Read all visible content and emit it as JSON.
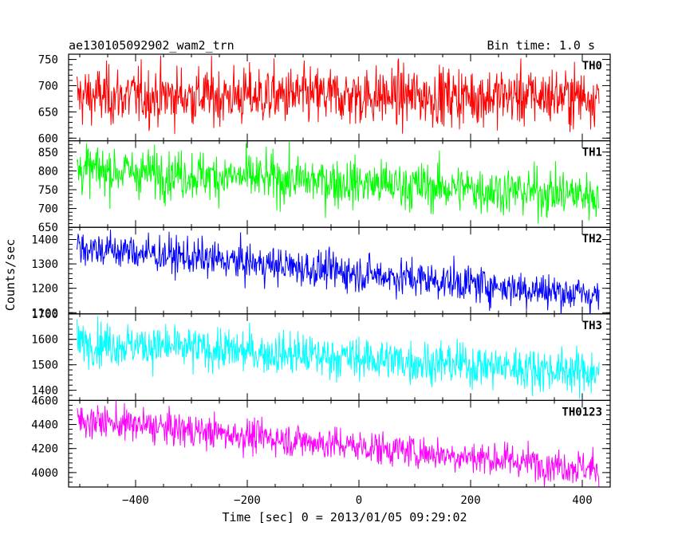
{
  "header": {
    "left_title": "ae130105092902_wam2_trn",
    "right_title": "Bin time: 1.0 s"
  },
  "chart_data": {
    "type": "line",
    "x_range": [
      -520,
      450
    ],
    "xlabel": "Time [sec] 0 = 2013/01/05 09:29:02",
    "ylabel": "Counts/sec",
    "x_ticks": [
      -400,
      -200,
      0,
      200,
      400
    ],
    "x_tick_labels": [
      "−400",
      "−200",
      "0",
      "200",
      "400"
    ],
    "bin_time_s": 1.0,
    "x_data_range": [
      -505,
      430
    ],
    "panels": [
      {
        "name": "TH0",
        "color": "#ff0000",
        "ylim": [
          595,
          760
        ],
        "y_ticks": [
          600,
          650,
          700,
          750
        ],
        "y_tick_labels": [
          "600",
          "650",
          "700",
          "750"
        ],
        "trend": [
          680,
          680
        ],
        "noise": 28
      },
      {
        "name": "TH1",
        "color": "#00ff00",
        "ylim": [
          650,
          880
        ],
        "y_ticks": [
          650,
          700,
          750,
          800,
          850
        ],
        "y_tick_labels": [
          "650",
          "700",
          "750",
          "800",
          "850"
        ],
        "trend": [
          805,
          735
        ],
        "noise": 32
      },
      {
        "name": "TH2",
        "color": "#0000ff",
        "ylim": [
          1095,
          1450
        ],
        "y_ticks": [
          1100,
          1200,
          1300,
          1400
        ],
        "y_tick_labels": [
          "1100",
          "1200",
          "1300",
          "1400"
        ],
        "trend": [
          1370,
          1170
        ],
        "noise": 38
      },
      {
        "name": "TH3",
        "color": "#00ffff",
        "ylim": [
          1360,
          1700
        ],
        "y_ticks": [
          1400,
          1500,
          1600,
          1700
        ],
        "y_tick_labels": [
          "1400",
          "1500",
          "1600",
          "1700"
        ],
        "trend": [
          1590,
          1470
        ],
        "noise": 42
      },
      {
        "name": "TH0123",
        "color": "#ff00ff",
        "ylim": [
          3880,
          4600
        ],
        "y_ticks": [
          4000,
          4200,
          4400,
          4600
        ],
        "y_tick_labels": [
          "4000",
          "4200",
          "4400",
          "4600"
        ],
        "trend": [
          4440,
          4030
        ],
        "noise": 70
      }
    ]
  }
}
